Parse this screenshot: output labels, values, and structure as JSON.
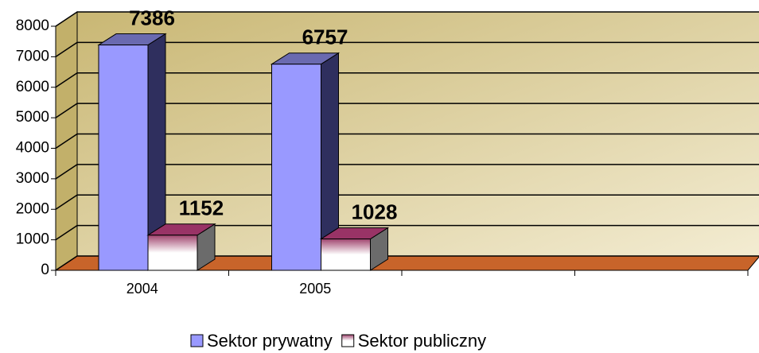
{
  "chart_data": {
    "type": "bar",
    "categories": [
      "2004",
      "2005",
      null,
      null
    ],
    "series": [
      {
        "name": "Sektor prywatny",
        "color": "#9999ff",
        "values": [
          7386,
          6757,
          null,
          null
        ]
      },
      {
        "name": "Sektor publiczny",
        "color": "#993366",
        "values": [
          1152,
          1028,
          null,
          null
        ]
      }
    ],
    "ylim": [
      0,
      8000
    ],
    "yticks": [
      0,
      1000,
      2000,
      3000,
      4000,
      5000,
      6000,
      7000,
      8000
    ],
    "grid": true
  }
}
